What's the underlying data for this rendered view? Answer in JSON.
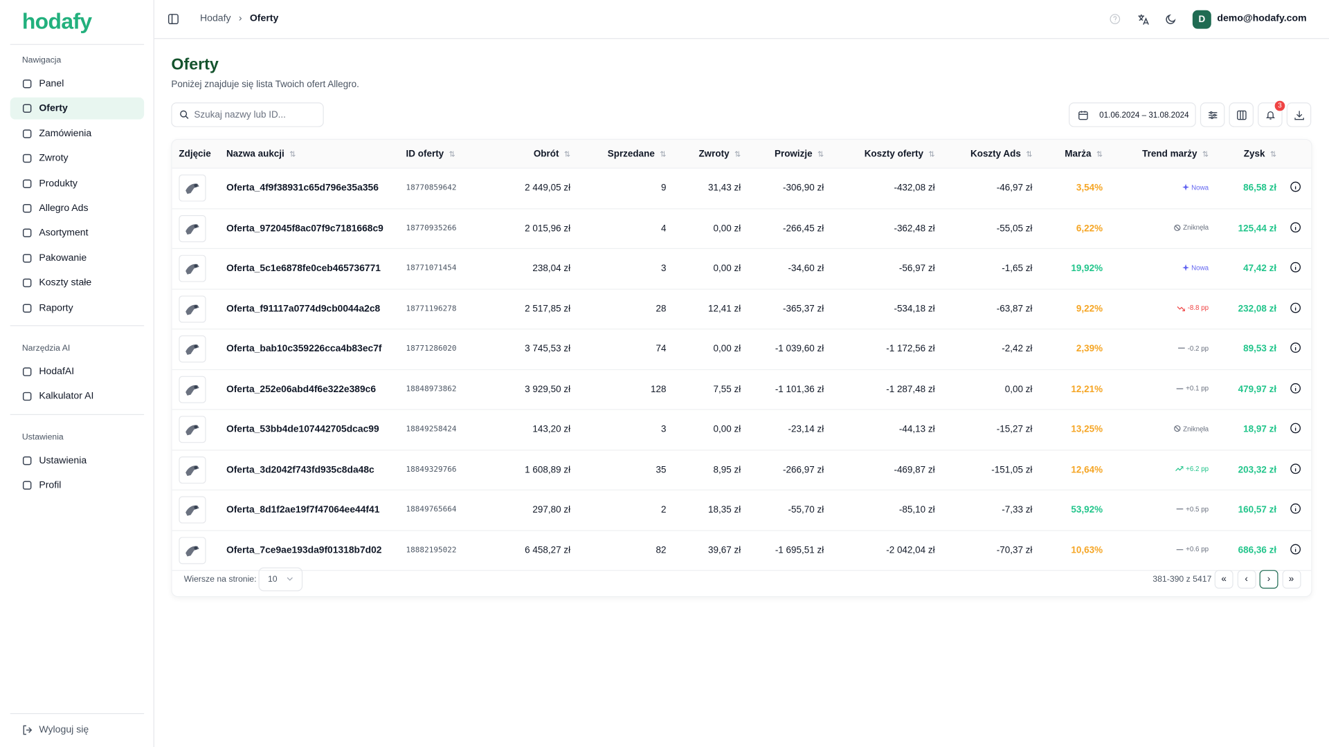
{
  "sidebar": {
    "logo": "hodafy",
    "sections": [
      {
        "title": "Nawigacja",
        "items": [
          {
            "label": "Panel"
          },
          {
            "label": "Oferty",
            "active": true
          },
          {
            "label": "Zamówienia"
          },
          {
            "label": "Zwroty"
          },
          {
            "label": "Produkty"
          },
          {
            "label": "Allegro Ads"
          },
          {
            "label": "Asortyment"
          },
          {
            "label": "Pakowanie"
          },
          {
            "label": "Koszty stałe"
          },
          {
            "label": "Raporty"
          }
        ]
      },
      {
        "title": "Narzędzia AI",
        "items": [
          {
            "label": "HodafAI"
          },
          {
            "label": "Kalkulator AI"
          }
        ]
      },
      {
        "title": "Ustawienia",
        "items": [
          {
            "label": "Ustawienia"
          },
          {
            "label": "Profil"
          }
        ]
      }
    ],
    "logout": "Wyloguj się"
  },
  "header": {
    "breadcrumb": [
      "Hodafy",
      "Oferty"
    ],
    "avatar": "D",
    "email": "demo@hodafy.com"
  },
  "page": {
    "title": "Oferty",
    "subtitle": "Poniżej znajduje się lista Twoich ofert Allegro.",
    "search_placeholder": "Szukaj nazwy lub ID...",
    "date_range": "01.06.2024 – 31.08.2024",
    "notifications": 3
  },
  "table": {
    "columns": [
      "Zdjęcie",
      "Nazwa aukcji",
      "ID oferty",
      "Obrót",
      "Sprzedane",
      "Zwroty",
      "Prowizje",
      "Koszty oferty",
      "Koszty Ads",
      "Marża",
      "Trend marży",
      "Zysk"
    ],
    "rows": [
      {
        "cells": [
          "Oferta_4f9f38931c65d796e35a356",
          "18770859642",
          "2 449,05 zł",
          "9",
          "31,43 zł",
          "-306,90 zł",
          "-432,08 zł",
          "-46,97 zł",
          "3,54%",
          "Nowa",
          "86,58 zł"
        ],
        "marza_color": "#f5a524",
        "trend_color": "#6366f1",
        "trend_icon": "sparkle"
      },
      {
        "cells": [
          "Oferta_972045f8ac07f9c7181668c9",
          "18770935266",
          "2 015,96 zł",
          "4",
          "0,00 zł",
          "-266,45 zł",
          "-362,48 zł",
          "-55,05 zł",
          "6,22%",
          "Zniknęła",
          "125,44 zł"
        ],
        "marza_color": "#f5a524",
        "trend_color": "#6b7280",
        "trend_icon": "ban"
      },
      {
        "cells": [
          "Oferta_5c1e6878fe0ceb465736771",
          "18771071454",
          "238,04 zł",
          "3",
          "0,00 zł",
          "-34,60 zł",
          "-56,97 zł",
          "-1,65 zł",
          "19,92%",
          "Nowa",
          "47,42 zł"
        ],
        "marza_color": "#22c58b",
        "trend_color": "#6366f1",
        "trend_icon": "sparkle"
      },
      {
        "cells": [
          "Oferta_f91117a0774d9cb0044a2c8",
          "18771196278",
          "2 517,85 zł",
          "28",
          "12,41 zł",
          "-365,37 zł",
          "-534,18 zł",
          "-63,87 zł",
          "9,22%",
          "-8.8 pp",
          "232,08 zł"
        ],
        "marza_color": "#f5a524",
        "trend_color": "#ef4444",
        "trend_icon": "down"
      },
      {
        "cells": [
          "Oferta_bab10c359226cca4b83ec7f",
          "18771286020",
          "3 745,53 zł",
          "74",
          "0,00 zł",
          "-1 039,60 zł",
          "-1 172,56 zł",
          "-2,42 zł",
          "2,39%",
          "-0.2 pp",
          "89,53 zł"
        ],
        "marza_color": "#f5a524",
        "trend_color": "#6b7280",
        "trend_icon": "flat"
      },
      {
        "cells": [
          "Oferta_252e06abd4f6e322e389c6",
          "18848973862",
          "3 929,50 zł",
          "128",
          "7,55 zł",
          "-1 101,36 zł",
          "-1 287,48 zł",
          "0,00 zł",
          "12,21%",
          "+0.1 pp",
          "479,97 zł"
        ],
        "marza_color": "#f5a524",
        "trend_color": "#6b7280",
        "trend_icon": "flat"
      },
      {
        "cells": [
          "Oferta_53bb4de107442705dcac99",
          "18849258424",
          "143,20 zł",
          "3",
          "0,00 zł",
          "-23,14 zł",
          "-44,13 zł",
          "-15,27 zł",
          "13,25%",
          "Zniknęła",
          "18,97 zł"
        ],
        "marza_color": "#f5a524",
        "trend_color": "#6b7280",
        "trend_icon": "ban"
      },
      {
        "cells": [
          "Oferta_3d2042f743fd935c8da48c",
          "18849329766",
          "1 608,89 zł",
          "35",
          "8,95 zł",
          "-266,97 zł",
          "-469,87 zł",
          "-151,05 zł",
          "12,64%",
          "+6.2 pp",
          "203,32 zł"
        ],
        "marza_color": "#f5a524",
        "trend_color": "#22c58b",
        "trend_icon": "up"
      },
      {
        "cells": [
          "Oferta_8d1f2ae19f7f47064ee44f41",
          "18849765664",
          "297,80 zł",
          "2",
          "18,35 zł",
          "-55,70 zł",
          "-85,10 zł",
          "-7,33 zł",
          "53,92%",
          "+0.5 pp",
          "160,57 zł"
        ],
        "marza_color": "#22c58b",
        "trend_color": "#6b7280",
        "trend_icon": "flat"
      },
      {
        "cells": [
          "Oferta_7ce9ae193da9f01318b7d02",
          "18882195022",
          "6 458,27 zł",
          "82",
          "39,67 zł",
          "-1 695,51 zł",
          "-2 042,04 zł",
          "-70,37 zł",
          "10,63%",
          "+0.6 pp",
          "686,36 zł"
        ],
        "marza_color": "#f5a524",
        "trend_color": "#6b7280",
        "trend_icon": "flat"
      }
    ]
  },
  "pagination": {
    "rows_label": "Wiersze na stronie:",
    "rows_per_page": "10",
    "range": "381-390 z 5417",
    "buttons": [
      "«",
      "‹",
      "›",
      "»"
    ]
  }
}
